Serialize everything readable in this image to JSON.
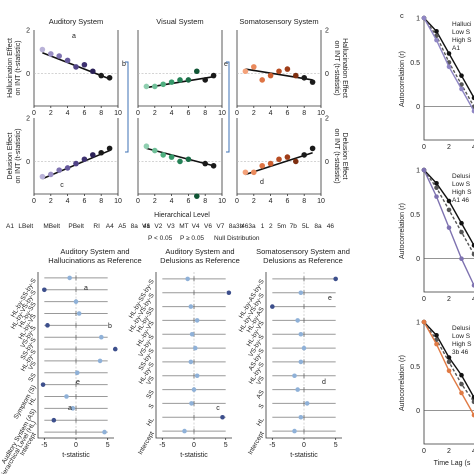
{
  "figure": {
    "panel_c_label": "c",
    "letters": [
      "a",
      "b",
      "c",
      "d",
      "e"
    ],
    "scatter_titles": [
      "Auditory System",
      "Visual System",
      "Somatosensory System"
    ],
    "x_axis_label": "Hierarchical Level",
    "y_label_top": [
      "Hallucination Effect",
      "on INT (t-statistic)"
    ],
    "y_label_bottom": [
      "Delusion Effect",
      "on INT (t-statistic)"
    ],
    "x_ticks": [
      "0",
      "2",
      "4",
      "6",
      "8",
      "10"
    ],
    "y_ticks_left": [
      "2",
      "0"
    ],
    "y_ticks_right": [
      "2",
      "0"
    ],
    "region_labels": {
      "auditory": [
        "A1",
        "LBelt",
        "MBelt",
        "PBelt",
        "RI",
        "A4",
        "A5",
        "8a",
        "46"
      ],
      "visual": [
        "V1",
        "V2",
        "V3",
        "MT",
        "V4",
        "V6",
        "V7",
        "8a",
        "46"
      ],
      "somato": [
        "3b",
        "3a",
        "1",
        "2",
        "5m",
        "7b",
        "5L",
        "8a",
        "46"
      ]
    },
    "significance_legend": {
      "sig": "P < 0.05",
      "nonsig": "P ≥ 0.05",
      "null": "Null Distribution"
    },
    "forest_titles": [
      [
        "Auditory System and",
        "Hallucinations as Reference"
      ],
      [
        "Auditory System and",
        "Delusions as Reference"
      ],
      [
        "Somatosensory System and",
        "Delusions as Reference"
      ]
    ],
    "forest_row_labels": [
      [
        "HL-by-SS-by-S",
        "HL-by-VS-by-S",
        "HL-by-SS",
        "HL-by-VS",
        "VS-by-S",
        "SS-by-S",
        "HL-by-S",
        "VS",
        "SS",
        "Symptom (S)",
        "HL",
        "Auditory System (AS)",
        "Hierarchical Level (HL)",
        "Intercept"
      ],
      [
        "HL-by-SS-by-S",
        "HL-by-VS-by-S",
        "HL-by-SS",
        "HL-by-VS",
        "VS-by-S",
        "SS-by-S",
        "HL-by-S",
        "VS",
        "SS",
        "S",
        "HL",
        "Intercept"
      ],
      [
        "HL-by-AS-by-S",
        "HL-by-VS-by-S",
        "HL-by-AS",
        "HL-by-VS",
        "VS-by-S",
        "AS-by-S",
        "HL-by-S",
        "VS",
        "AS",
        "S",
        "HL",
        "Intercept"
      ]
    ],
    "forest_x_label": "t-statistic",
    "forest_x_ticks": [
      "-5",
      "0",
      "5"
    ],
    "autocorr_y_label": "Autocorrelation (r)",
    "autocorr_x_label": "Time Lag (s",
    "autocorr_x_ticks": [
      "0",
      "2",
      "4"
    ],
    "autocorr_y_ticks": [
      "1",
      "0.5",
      "0"
    ],
    "autocorr_legends": [
      [
        "Halluci",
        "Low S",
        "High S",
        "A1"
      ],
      [
        "Delusi",
        "Low S",
        "High S",
        "A1 46"
      ],
      [
        "Delusi",
        "Low S",
        "High S",
        "3b 46"
      ]
    ]
  },
  "chart_data": [
    {
      "type": "scatter",
      "title": "Auditory System",
      "ylabel": "Hallucination Effect on INT (t-statistic)",
      "x": [
        1,
        2,
        3,
        4,
        5,
        6,
        7,
        8,
        9
      ],
      "y": [
        1.1,
        0.9,
        0.8,
        0.6,
        0.3,
        0.4,
        0.1,
        -0.1,
        -0.2
      ],
      "fit": [
        [
          1,
          0.95
        ],
        [
          9,
          -0.25
        ]
      ],
      "xlim": [
        0,
        10
      ],
      "ylim": [
        -1.5,
        2
      ]
    },
    {
      "type": "scatter",
      "title": "Visual System",
      "x": [
        1,
        2,
        3,
        4,
        5,
        6,
        7,
        8,
        9
      ],
      "y": [
        -0.6,
        -0.6,
        -0.5,
        -0.4,
        -0.3,
        -0.3,
        0.1,
        -0.3,
        -0.1
      ],
      "fit": [
        [
          1,
          -0.65
        ],
        [
          9,
          -0.15
        ]
      ],
      "xlim": [
        0,
        10
      ],
      "ylim": [
        -1.5,
        2
      ]
    },
    {
      "type": "scatter",
      "title": "Somatosensory System",
      "x": [
        1,
        2,
        3,
        4,
        5,
        6,
        7,
        8,
        9
      ],
      "y": [
        0.1,
        0.3,
        -0.3,
        -0.1,
        0.1,
        0.2,
        -0.1,
        -0.2,
        -0.4
      ],
      "fit": [
        [
          1,
          0.2
        ],
        [
          9,
          -0.3
        ]
      ],
      "xlim": [
        0,
        10
      ],
      "ylim": [
        -1.5,
        2
      ]
    },
    {
      "type": "scatter",
      "ylabel": "Delusion Effect on INT (t-statistic)",
      "x": [
        1,
        2,
        3,
        4,
        5,
        6,
        7,
        8,
        9
      ],
      "y": [
        -0.7,
        -0.6,
        -0.4,
        -0.3,
        -0.1,
        0.1,
        0.3,
        0.4,
        0.6
      ],
      "fit": [
        [
          1,
          -0.8
        ],
        [
          9,
          0.5
        ]
      ],
      "xlim": [
        0,
        10
      ],
      "ylim": [
        -1.5,
        2
      ]
    },
    {
      "type": "scatter",
      "x": [
        1,
        2,
        3,
        4,
        5,
        6,
        7,
        8,
        9
      ],
      "y": [
        0.7,
        0.5,
        0.3,
        0.2,
        0.0,
        0.1,
        -1.6,
        -0.1,
        -0.2
      ],
      "fit": [
        [
          1,
          0.6
        ],
        [
          9,
          -0.2
        ]
      ],
      "xlim": [
        0,
        10
      ],
      "ylim": [
        -1.5,
        2
      ]
    },
    {
      "type": "scatter",
      "x": [
        1,
        2,
        3,
        4,
        5,
        6,
        7,
        8,
        9
      ],
      "y": [
        -0.5,
        -0.5,
        -0.2,
        -0.1,
        0.1,
        0.2,
        0.0,
        0.3,
        0.6
      ],
      "fit": [
        [
          1,
          -0.6
        ],
        [
          9,
          0.4
        ]
      ],
      "xlim": [
        0,
        10
      ],
      "ylim": [
        -1.5,
        2
      ]
    },
    {
      "type": "forest",
      "xlim": [
        -6,
        6
      ],
      "est": [
        -1.0,
        -5.0,
        0.0,
        0.5,
        -4.5,
        4.0,
        6.2,
        3.8,
        0.2,
        -5.2,
        -1.5,
        -0.5,
        -3.5,
        4.5
      ],
      "lo": [
        -5.0,
        -5.0,
        -5.0,
        -5.0,
        -5.0,
        -5.0,
        -5.0,
        -5.0,
        -5.0,
        -5.0,
        -5.0,
        -5.0,
        -5.0,
        -5.0
      ],
      "hi": [
        5.0,
        5.0,
        5.0,
        5.0,
        5.0,
        5.0,
        5.0,
        5.0,
        5.0,
        5.0,
        5.0,
        5.0,
        5.0,
        5.0
      ],
      "sig": [
        false,
        true,
        false,
        false,
        true,
        false,
        true,
        false,
        false,
        true,
        false,
        false,
        true,
        false
      ]
    },
    {
      "type": "forest",
      "xlim": [
        -6,
        6
      ],
      "est": [
        -1.0,
        5.5,
        -0.5,
        0.5,
        -0.3,
        0.2,
        -0.5,
        0.5,
        0.0,
        -0.4,
        4.5,
        -1.5
      ],
      "lo": [
        -5.0,
        -5.0,
        -5.0,
        -5.0,
        -5.0,
        -5.0,
        -5.0,
        -5.0,
        -5.0,
        -5.0,
        -5.0,
        -5.0
      ],
      "hi": [
        5.0,
        5.0,
        5.0,
        5.0,
        5.0,
        5.0,
        5.0,
        5.0,
        5.0,
        5.0,
        5.0,
        5.0
      ],
      "sig": [
        false,
        true,
        false,
        false,
        false,
        false,
        false,
        false,
        false,
        false,
        true,
        false
      ]
    },
    {
      "type": "forest",
      "xlim": [
        -6,
        6
      ],
      "est": [
        5.0,
        -0.5,
        -5.0,
        -1.0,
        -0.5,
        0.0,
        -0.5,
        -1.5,
        -1.0,
        0.5,
        -0.5,
        -1.5
      ],
      "lo": [
        -5.0,
        -5.0,
        -5.0,
        -5.0,
        -5.0,
        -5.0,
        -5.0,
        -5.0,
        -5.0,
        -5.0,
        -5.0,
        -5.0
      ],
      "hi": [
        5.0,
        5.0,
        5.0,
        5.0,
        5.0,
        5.0,
        5.0,
        5.0,
        5.0,
        5.0,
        5.0,
        5.0
      ],
      "sig": [
        true,
        false,
        true,
        false,
        false,
        false,
        false,
        false,
        false,
        false,
        false,
        false
      ]
    },
    {
      "type": "line",
      "x": [
        0,
        1,
        2,
        3,
        4,
        5
      ],
      "series": [
        {
          "values": [
            1.0,
            0.85,
            0.6,
            0.35,
            0.1,
            -0.1
          ]
        },
        {
          "values": [
            1.0,
            0.8,
            0.5,
            0.25,
            0.0,
            -0.2
          ]
        },
        {
          "values": [
            1.0,
            0.75,
            0.45,
            0.2,
            -0.05,
            -0.2
          ]
        }
      ]
    },
    {
      "type": "line",
      "x": [
        0,
        1,
        2,
        3,
        4,
        5
      ],
      "series": [
        {
          "values": [
            1.0,
            0.85,
            0.65,
            0.4,
            0.15,
            0.0
          ]
        },
        {
          "values": [
            1.0,
            0.8,
            0.55,
            0.3,
            0.05,
            -0.1
          ]
        },
        {
          "values": [
            1.0,
            0.7,
            0.35,
            0.0,
            -0.3,
            -0.4
          ]
        }
      ]
    },
    {
      "type": "line",
      "x": [
        0,
        1,
        2,
        3,
        4,
        5
      ],
      "series": [
        {
          "values": [
            1.0,
            0.85,
            0.6,
            0.4,
            0.15,
            0.0
          ]
        },
        {
          "values": [
            1.0,
            0.8,
            0.55,
            0.3,
            0.1,
            -0.05
          ]
        },
        {
          "values": [
            1.0,
            0.75,
            0.45,
            0.2,
            -0.05,
            -0.2
          ]
        }
      ]
    }
  ],
  "colors": {
    "auditory": [
      "#b9b2d8",
      "#9a8fc4",
      "#7e72b0",
      "#65589c",
      "#504386",
      "#3d316f",
      "#2b2157",
      "#1a1a1a",
      "#1a1a1a"
    ],
    "visual": [
      "#8fcfb0",
      "#6fbf98",
      "#4faf80",
      "#35996a",
      "#258257",
      "#1a6c46",
      "#105535",
      "#1a1a1a",
      "#1a1a1a"
    ],
    "somato": [
      "#f4a27a",
      "#ea8a5c",
      "#de7444",
      "#cd5f30",
      "#b84d23",
      "#9f3d18",
      "#7e2f10",
      "#1a1a1a",
      "#1a1a1a"
    ],
    "sig": "#3d4f8c",
    "nonsig": "#8fb1d8",
    "bracket": "#3d72b4"
  }
}
